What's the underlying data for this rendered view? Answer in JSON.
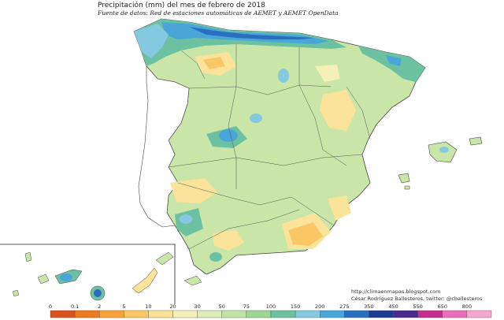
{
  "title": "Precipitación (mm) del mes de febrero  de 2018",
  "source": "Fuente de datos: Red de estaciones automáticas de AEMET y AEMET OpenData",
  "credits": {
    "url": "http://climaenmapas.blogspot.com",
    "author": "César Rodríguez Ballesteros, twitter: @cballesteros"
  },
  "legend": {
    "ticks": [
      "0",
      "0.1",
      "2",
      "5",
      "10",
      "20",
      "30",
      "50",
      "75",
      "100",
      "150",
      "200",
      "275",
      "350",
      "450",
      "550",
      "650",
      "800"
    ],
    "colors": [
      "#d9531e",
      "#ee7a1f",
      "#f7a23a",
      "#fbc766",
      "#fce39a",
      "#f3f0b8",
      "#dcecb8",
      "#c1e3a6",
      "#9fd596",
      "#6cc1a0",
      "#85c9e0",
      "#4aa6d8",
      "#2a6fbf",
      "#1a3c92",
      "#4a2a8c",
      "#c22d8e",
      "#ea6fb8",
      "#f6a7cf"
    ]
  }
}
